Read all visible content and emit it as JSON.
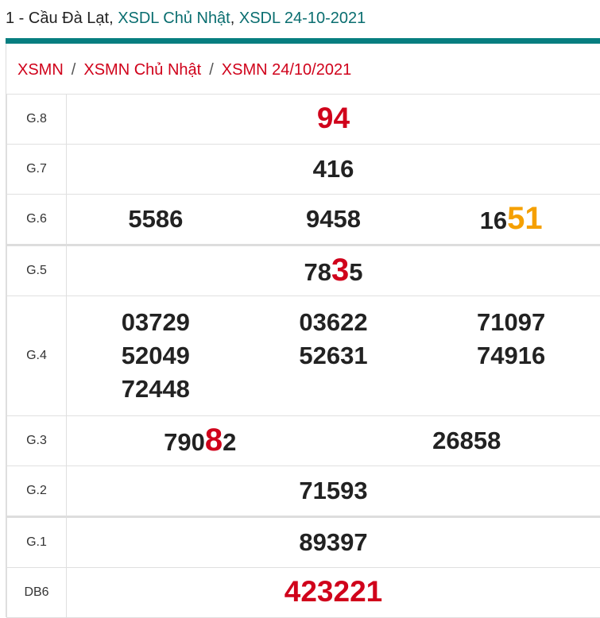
{
  "title": {
    "prefix": "1 - Cầu Đà Lạt, ",
    "link1": "XSDL Chủ Nhật",
    "mid": ", ",
    "link2": "XSDL 24-10-2021"
  },
  "breadcrumb": [
    "XSMN",
    "XSMN Chủ Nhật",
    "XSMN 24/10/2021"
  ],
  "breadcrumb_sep": "/",
  "colors": {
    "accent": "#077e80",
    "link": "#0a6e70",
    "red": "#d0021b",
    "orange": "#f5a000"
  },
  "prizes": [
    {
      "label": "G.8",
      "numbers": [
        [
          {
            "t": "94",
            "s": "red"
          }
        ]
      ]
    },
    {
      "label": "G.7",
      "numbers": [
        [
          {
            "t": "416"
          }
        ]
      ]
    },
    {
      "label": "G.6",
      "numbers": [
        [
          {
            "t": "5586"
          }
        ],
        [
          {
            "t": "9458"
          }
        ],
        [
          {
            "t": "16"
          },
          {
            "t": "51",
            "s": "hl-orange"
          }
        ]
      ]
    },
    {
      "label": "G.5",
      "numbers": [
        [
          {
            "t": "78"
          },
          {
            "t": "3",
            "s": "hl-red"
          },
          {
            "t": "5"
          }
        ]
      ]
    },
    {
      "label": "G.4",
      "numbers": [
        [
          {
            "t": "03729"
          }
        ],
        [
          {
            "t": "03622"
          }
        ],
        [
          {
            "t": "71097"
          }
        ],
        [
          {
            "t": "52049"
          }
        ],
        [
          {
            "t": "52631"
          }
        ],
        [
          {
            "t": "74916"
          }
        ],
        [
          {
            "t": "72448"
          }
        ]
      ]
    },
    {
      "label": "G.3",
      "numbers": [
        [
          {
            "t": "790"
          },
          {
            "t": "8",
            "s": "hl-red"
          },
          {
            "t": "2"
          }
        ],
        [
          {
            "t": "26858"
          }
        ]
      ]
    },
    {
      "label": "G.2",
      "numbers": [
        [
          {
            "t": "71593"
          }
        ]
      ]
    },
    {
      "label": "G.1",
      "numbers": [
        [
          {
            "t": "89397"
          }
        ]
      ]
    },
    {
      "label": "DB6",
      "numbers": [
        [
          {
            "t": "423221",
            "s": "red"
          }
        ]
      ]
    }
  ]
}
